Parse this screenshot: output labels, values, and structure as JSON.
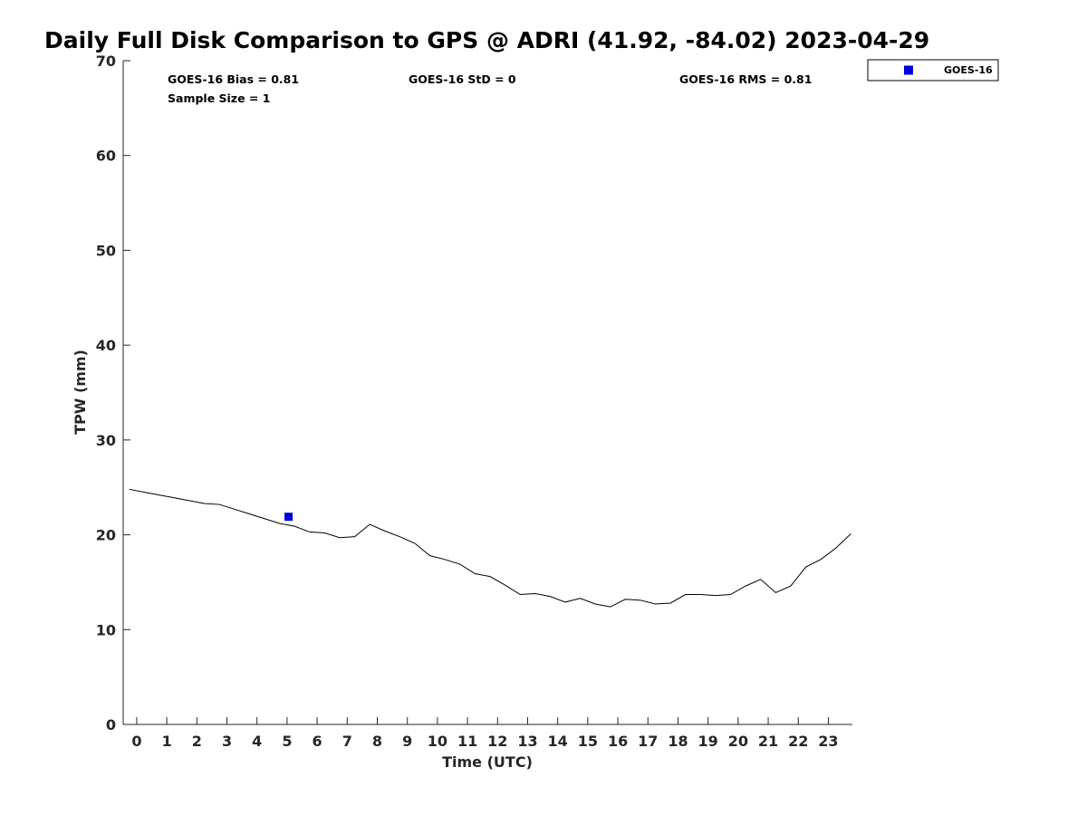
{
  "chart_data": {
    "type": "line",
    "title": "Daily Full Disk Comparison to GPS @ ADRI (41.92, -84.02) 2023-04-29",
    "xlabel": "Time (UTC)",
    "ylabel": "TPW (mm)",
    "xlim": [
      -0.45,
      23.8
    ],
    "ylim": [
      0,
      70
    ],
    "x_ticks": [
      0,
      1,
      2,
      3,
      4,
      5,
      6,
      7,
      8,
      9,
      10,
      11,
      12,
      13,
      14,
      15,
      16,
      17,
      18,
      19,
      20,
      21,
      22,
      23
    ],
    "y_ticks": [
      0,
      10,
      20,
      30,
      40,
      50,
      60,
      70
    ],
    "grid": false,
    "legend_position": "top-right, outside plot",
    "series": [
      {
        "role": "gps_reference",
        "color": "#000000",
        "x": [
          -0.25,
          0.25,
          0.75,
          1.25,
          1.75,
          2.25,
          2.75,
          3.25,
          3.75,
          4.25,
          4.75,
          5.25,
          5.75,
          6.25,
          6.75,
          7.25,
          7.75,
          8.25,
          8.75,
          9.25,
          9.75,
          10.25,
          10.75,
          11.25,
          11.75,
          12.25,
          12.75,
          13.25,
          13.75,
          14.25,
          14.75,
          15.25,
          15.75,
          16.25,
          16.75,
          17.25,
          17.75,
          18.25,
          18.75,
          19.25,
          19.75,
          20.25,
          20.75,
          21.25,
          21.75,
          22.25,
          22.75,
          23.25,
          23.75
        ],
        "y": [
          24.8,
          24.5,
          24.2,
          23.9,
          23.6,
          23.3,
          23.2,
          22.7,
          22.2,
          21.7,
          21.2,
          20.9,
          20.3,
          20.2,
          19.7,
          19.8,
          21.1,
          20.4,
          19.8,
          19.1,
          17.8,
          17.4,
          16.9,
          15.9,
          15.6,
          14.7,
          13.7,
          13.8,
          13.5,
          12.9,
          13.3,
          12.7,
          12.4,
          13.2,
          13.1,
          12.7,
          12.8,
          13.7,
          13.7,
          13.6,
          13.7,
          14.6,
          15.3,
          13.9,
          14.6,
          16.6,
          17.4,
          18.6,
          20.1
        ]
      },
      {
        "name": "GOES-16",
        "color": "#0000dd",
        "marker": "square",
        "x": [
          5.05
        ],
        "y": [
          21.9
        ]
      }
    ],
    "stats": {
      "bias": "GOES-16 Bias = 0.81",
      "std": "GOES-16 StD = 0",
      "rms": "GOES-16 RMS = 0.81",
      "sample_size": "Sample Size = 1"
    }
  }
}
